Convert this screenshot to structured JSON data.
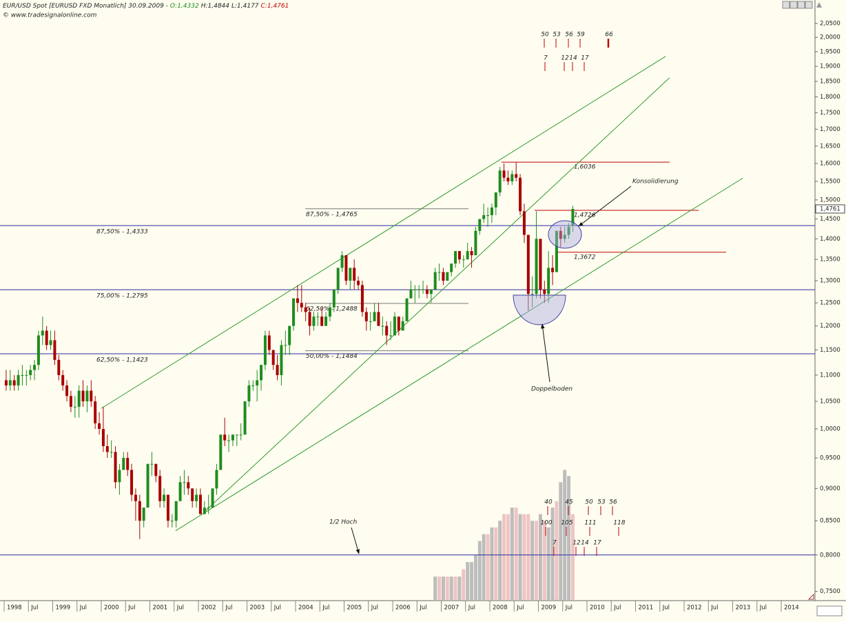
{
  "chart_data": {
    "type": "candlestick",
    "header": {
      "title": "EUR/USD Spot [EURUSD FXD  Monatlich] 30.09.2009 -",
      "open": "O:1,4332",
      "high": "H:1,4844",
      "low": "L:1,4177",
      "close": "C:1,4761"
    },
    "source": "© www.tradesignalonline.com",
    "x": [
      "1998-01",
      "1998-02",
      "1998-03",
      "1998-04",
      "1998-05",
      "1998-06",
      "1998-07",
      "1998-08",
      "1998-09",
      "1998-10",
      "1998-11",
      "1998-12",
      "1999-01",
      "1999-02",
      "1999-03",
      "1999-04",
      "1999-05",
      "1999-06",
      "1999-07",
      "1999-08",
      "1999-09",
      "1999-10",
      "1999-11",
      "1999-12",
      "2000-01",
      "2000-02",
      "2000-03",
      "2000-04",
      "2000-05",
      "2000-06",
      "2000-07",
      "2000-08",
      "2000-09",
      "2000-10",
      "2000-11",
      "2000-12",
      "2001-01",
      "2001-02",
      "2001-03",
      "2001-04",
      "2001-05",
      "2001-06",
      "2001-07",
      "2001-08",
      "2001-09",
      "2001-10",
      "2001-11",
      "2001-12",
      "2002-01",
      "2002-02",
      "2002-03",
      "2002-04",
      "2002-05",
      "2002-06",
      "2002-07",
      "2002-08",
      "2002-09",
      "2002-10",
      "2002-11",
      "2002-12",
      "2003-01",
      "2003-02",
      "2003-03",
      "2003-04",
      "2003-05",
      "2003-06",
      "2003-07",
      "2003-08",
      "2003-09",
      "2003-10",
      "2003-11",
      "2003-12",
      "2004-01",
      "2004-02",
      "2004-03",
      "2004-04",
      "2004-05",
      "2004-06",
      "2004-07",
      "2004-08",
      "2004-09",
      "2004-10",
      "2004-11",
      "2004-12",
      "2005-01",
      "2005-02",
      "2005-03",
      "2005-04",
      "2005-05",
      "2005-06",
      "2005-07",
      "2005-08",
      "2005-09",
      "2005-10",
      "2005-11",
      "2005-12",
      "2006-01",
      "2006-02",
      "2006-03",
      "2006-04",
      "2006-05",
      "2006-06",
      "2006-07",
      "2006-08",
      "2006-09",
      "2006-10",
      "2006-11",
      "2006-12",
      "2007-01",
      "2007-02",
      "2007-03",
      "2007-04",
      "2007-05",
      "2007-06",
      "2007-07",
      "2007-08",
      "2007-09",
      "2007-10",
      "2007-11",
      "2007-12",
      "2008-01",
      "2008-02",
      "2008-03",
      "2008-04",
      "2008-05",
      "2008-06",
      "2008-07",
      "2008-08",
      "2008-09",
      "2008-10",
      "2008-11",
      "2008-12",
      "2009-01",
      "2009-02",
      "2009-03",
      "2009-04",
      "2009-05",
      "2009-06",
      "2009-07",
      "2009-08",
      "2009-09"
    ],
    "open": [
      1.09,
      1.08,
      1.09,
      1.08,
      1.1,
      1.1,
      1.1,
      1.11,
      1.12,
      1.18,
      1.19,
      1.16,
      1.17,
      1.13,
      1.1,
      1.08,
      1.06,
      1.04,
      1.04,
      1.07,
      1.05,
      1.07,
      1.05,
      1.01,
      1.0,
      0.97,
      0.96,
      0.96,
      0.91,
      0.93,
      0.95,
      0.93,
      0.89,
      0.88,
      0.85,
      0.87,
      0.94,
      0.94,
      0.92,
      0.88,
      0.89,
      0.85,
      0.85,
      0.88,
      0.91,
      0.91,
      0.9,
      0.88,
      0.89,
      0.86,
      0.87,
      0.87,
      0.9,
      0.93,
      0.99,
      0.98,
      0.98,
      0.99,
      0.99,
      0.99,
      1.05,
      1.08,
      1.08,
      1.09,
      1.12,
      1.18,
      1.15,
      1.12,
      1.1,
      1.16,
      1.16,
      1.2,
      1.26,
      1.25,
      1.24,
      1.23,
      1.2,
      1.22,
      1.22,
      1.2,
      1.22,
      1.24,
      1.28,
      1.33,
      1.36,
      1.3,
      1.33,
      1.3,
      1.29,
      1.23,
      1.21,
      1.21,
      1.23,
      1.2,
      1.2,
      1.18,
      1.18,
      1.22,
      1.19,
      1.21,
      1.26,
      1.28,
      1.28,
      1.28,
      1.28,
      1.27,
      1.28,
      1.32,
      1.32,
      1.3,
      1.32,
      1.34,
      1.37,
      1.35,
      1.35,
      1.37,
      1.36,
      1.42,
      1.45,
      1.46,
      1.46,
      1.48,
      1.52,
      1.58,
      1.56,
      1.55,
      1.57,
      1.56,
      1.47,
      1.41,
      1.27,
      1.27,
      1.4,
      1.28,
      1.27,
      1.33,
      1.32,
      1.42,
      1.4,
      1.41,
      1.4332
    ],
    "high": [
      1.11,
      1.11,
      1.1,
      1.11,
      1.12,
      1.11,
      1.12,
      1.13,
      1.19,
      1.22,
      1.2,
      1.19,
      1.19,
      1.14,
      1.11,
      1.09,
      1.07,
      1.06,
      1.08,
      1.09,
      1.08,
      1.09,
      1.06,
      1.03,
      1.04,
      0.99,
      0.98,
      0.97,
      0.94,
      0.96,
      0.96,
      0.94,
      0.9,
      0.89,
      0.87,
      0.94,
      0.96,
      0.94,
      0.93,
      0.9,
      0.89,
      0.86,
      0.88,
      0.92,
      0.93,
      0.92,
      0.9,
      0.9,
      0.9,
      0.88,
      0.89,
      0.9,
      0.94,
      0.99,
      1.02,
      0.99,
      0.99,
      0.99,
      1.01,
      1.05,
      1.09,
      1.09,
      1.11,
      1.12,
      1.19,
      1.19,
      1.15,
      1.14,
      1.17,
      1.19,
      1.2,
      1.26,
      1.29,
      1.29,
      1.25,
      1.24,
      1.23,
      1.23,
      1.24,
      1.23,
      1.25,
      1.28,
      1.33,
      1.37,
      1.36,
      1.33,
      1.35,
      1.31,
      1.3,
      1.24,
      1.23,
      1.25,
      1.25,
      1.22,
      1.21,
      1.21,
      1.23,
      1.22,
      1.22,
      1.26,
      1.3,
      1.29,
      1.29,
      1.3,
      1.29,
      1.28,
      1.33,
      1.34,
      1.33,
      1.32,
      1.34,
      1.37,
      1.37,
      1.36,
      1.39,
      1.38,
      1.43,
      1.45,
      1.49,
      1.48,
      1.49,
      1.52,
      1.59,
      1.6,
      1.58,
      1.58,
      1.6036,
      1.57,
      1.49,
      1.41,
      1.31,
      1.47,
      1.4,
      1.3,
      1.37,
      1.36,
      1.42,
      1.43,
      1.43,
      1.44,
      1.4844
    ],
    "low": [
      1.07,
      1.07,
      1.07,
      1.07,
      1.08,
      1.08,
      1.09,
      1.09,
      1.11,
      1.16,
      1.15,
      1.15,
      1.12,
      1.09,
      1.07,
      1.05,
      1.03,
      1.02,
      1.02,
      1.04,
      1.03,
      1.04,
      1.0,
      0.99,
      0.96,
      0.95,
      0.95,
      0.9,
      0.89,
      0.93,
      0.92,
      0.88,
      0.85,
      0.8228,
      0.84,
      0.87,
      0.92,
      0.91,
      0.87,
      0.87,
      0.84,
      0.84,
      0.84,
      0.88,
      0.89,
      0.89,
      0.87,
      0.87,
      0.86,
      0.86,
      0.86,
      0.87,
      0.89,
      0.93,
      0.97,
      0.96,
      0.97,
      0.97,
      0.98,
      0.99,
      1.04,
      1.07,
      1.05,
      1.07,
      1.11,
      1.14,
      1.11,
      1.09,
      1.08,
      1.14,
      1.14,
      1.19,
      1.23,
      1.23,
      1.21,
      1.18,
      1.19,
      1.2,
      1.2,
      1.2,
      1.21,
      1.23,
      1.27,
      1.32,
      1.29,
      1.28,
      1.28,
      1.28,
      1.22,
      1.19,
      1.19,
      1.21,
      1.2,
      1.18,
      1.16,
      1.17,
      1.18,
      1.18,
      1.19,
      1.21,
      1.26,
      1.25,
      1.26,
      1.27,
      1.26,
      1.25,
      1.28,
      1.3,
      1.29,
      1.3,
      1.31,
      1.33,
      1.34,
      1.33,
      1.35,
      1.33,
      1.36,
      1.41,
      1.44,
      1.43,
      1.44,
      1.46,
      1.51,
      1.55,
      1.54,
      1.54,
      1.55,
      1.46,
      1.39,
      1.233,
      1.24,
      1.26,
      1.26,
      1.25,
      1.25,
      1.29,
      1.32,
      1.38,
      1.39,
      1.4,
      1.4177
    ],
    "close": [
      1.08,
      1.09,
      1.08,
      1.1,
      1.1,
      1.1,
      1.11,
      1.12,
      1.18,
      1.19,
      1.16,
      1.17,
      1.13,
      1.1,
      1.08,
      1.06,
      1.04,
      1.04,
      1.07,
      1.05,
      1.07,
      1.05,
      1.01,
      1.0,
      0.97,
      0.96,
      0.96,
      0.91,
      0.93,
      0.95,
      0.93,
      0.89,
      0.88,
      0.85,
      0.87,
      0.94,
      0.94,
      0.92,
      0.88,
      0.89,
      0.85,
      0.85,
      0.88,
      0.91,
      0.91,
      0.9,
      0.88,
      0.89,
      0.86,
      0.87,
      0.87,
      0.9,
      0.93,
      0.99,
      0.98,
      0.98,
      0.99,
      0.99,
      0.99,
      1.05,
      1.08,
      1.08,
      1.09,
      1.12,
      1.18,
      1.15,
      1.12,
      1.1,
      1.16,
      1.16,
      1.2,
      1.26,
      1.25,
      1.24,
      1.23,
      1.2,
      1.22,
      1.22,
      1.2,
      1.22,
      1.24,
      1.28,
      1.33,
      1.36,
      1.3,
      1.33,
      1.3,
      1.29,
      1.23,
      1.21,
      1.21,
      1.23,
      1.2,
      1.2,
      1.18,
      1.18,
      1.22,
      1.19,
      1.21,
      1.26,
      1.28,
      1.28,
      1.28,
      1.28,
      1.27,
      1.28,
      1.32,
      1.32,
      1.3,
      1.32,
      1.34,
      1.37,
      1.35,
      1.35,
      1.37,
      1.36,
      1.42,
      1.45,
      1.46,
      1.46,
      1.48,
      1.52,
      1.58,
      1.56,
      1.55,
      1.57,
      1.56,
      1.47,
      1.41,
      1.27,
      1.27,
      1.4,
      1.28,
      1.27,
      1.33,
      1.32,
      1.42,
      1.4,
      1.41,
      1.43,
      1.4761
    ],
    "color_up": "#1e8c1e",
    "color_down": "#a80000",
    "last_label": "1,4761",
    "log": true,
    "ylim": [
      0.7388,
      2.098
    ],
    "yticks": [
      {
        "value": 0.75,
        "label": "0,7500"
      },
      {
        "value": 0.8,
        "label": "0,8000"
      },
      {
        "value": 0.85,
        "label": "0,8500"
      },
      {
        "value": 0.9,
        "label": "0,9000"
      },
      {
        "value": 0.95,
        "label": "0,9500"
      },
      {
        "value": 1.0,
        "label": "1,0000"
      },
      {
        "value": 1.05,
        "label": "1,0500"
      },
      {
        "value": 1.1,
        "label": "1,1000"
      },
      {
        "value": 1.15,
        "label": "1,1500"
      },
      {
        "value": 1.2,
        "label": "1,2000"
      },
      {
        "value": 1.25,
        "label": "1,2500"
      },
      {
        "value": 1.3,
        "label": "1,3000"
      },
      {
        "value": 1.35,
        "label": "1,3500"
      },
      {
        "value": 1.4,
        "label": "1,4000"
      },
      {
        "value": 1.45,
        "label": "1,4500"
      },
      {
        "value": 1.5,
        "label": "1,5000"
      },
      {
        "value": 1.55,
        "label": "1,5500"
      },
      {
        "value": 1.6,
        "label": "1,6000"
      },
      {
        "value": 1.65,
        "label": "1,6500"
      },
      {
        "value": 1.7,
        "label": "1,7000"
      },
      {
        "value": 1.75,
        "label": "1,7500"
      },
      {
        "value": 1.8,
        "label": "1,8000"
      },
      {
        "value": 1.85,
        "label": "1,8500"
      },
      {
        "value": 1.9,
        "label": "1,9000"
      },
      {
        "value": 1.95,
        "label": "1,9500"
      },
      {
        "value": 2.0,
        "label": "2,0000"
      },
      {
        "value": 2.05,
        "label": "2,0500"
      }
    ],
    "xlim": [
      1997.915,
      2014.695
    ],
    "xticks": [
      1998,
      {
        "value": 1998.5,
        "label": "Jul"
      },
      1999,
      {
        "value": 1999.5,
        "label": "Jul"
      },
      2000,
      {
        "value": 2000.5,
        "label": "Jul"
      },
      2001,
      {
        "value": 2001.5,
        "label": "Jul"
      },
      2002,
      {
        "value": 2002.5,
        "label": "Jul"
      },
      2003,
      {
        "value": 2003.5,
        "label": "Jul"
      },
      2004,
      {
        "value": 2004.5,
        "label": "Jul"
      },
      2005,
      {
        "value": 2005.5,
        "label": "Jul"
      },
      2006,
      {
        "value": 2006.5,
        "label": "Jul"
      },
      2007,
      {
        "value": 2007.5,
        "label": "Jul"
      },
      2008,
      {
        "value": 2008.5,
        "label": "Jul"
      },
      2009,
      {
        "value": 2009.5,
        "label": "Jul"
      },
      2010,
      {
        "value": 2010.5,
        "label": "Jul"
      },
      2011,
      {
        "value": 2011.5,
        "label": "Jul"
      },
      2012,
      {
        "value": 2012.5,
        "label": "Jul"
      },
      2013,
      {
        "value": 2013.5,
        "label": "Jul"
      },
      2014
    ],
    "bars": {
      "x": [
        "2006-11",
        "2006-12",
        "2007-01",
        "2007-02",
        "2007-03",
        "2007-04",
        "2007-05",
        "2007-06",
        "2007-07",
        "2007-08",
        "2007-09",
        "2007-10",
        "2007-11",
        "2007-12",
        "2008-01",
        "2008-02",
        "2008-03",
        "2008-04",
        "2008-05",
        "2008-06",
        "2008-07",
        "2008-08",
        "2008-09",
        "2008-10",
        "2008-11",
        "2008-12",
        "2009-01",
        "2009-02",
        "2009-03",
        "2009-04",
        "2009-05",
        "2009-06",
        "2009-07",
        "2009-08",
        "2009-09"
      ],
      "values": [
        0.77,
        0.77,
        0.77,
        0.77,
        0.77,
        0.77,
        0.77,
        0.78,
        0.79,
        0.79,
        0.8,
        0.82,
        0.83,
        0.83,
        0.84,
        0.84,
        0.85,
        0.86,
        0.86,
        0.87,
        0.87,
        0.86,
        0.86,
        0.86,
        0.85,
        0.85,
        0.86,
        0.85,
        0.84,
        0.87,
        0.88,
        0.91,
        0.93,
        0.92,
        0.86
      ],
      "colors": [
        "#bdbdbd",
        "#f0c4c4",
        "#bdbdbd",
        "#f0c4c4",
        "#bdbdbd",
        "#f0c4c4",
        "#bdbdbd",
        "#f0c4c4",
        "#bdbdbd",
        "#bdbdbd",
        "#bdbdbd",
        "#bdbdbd",
        "#bdbdbd",
        "#f0c4c4",
        "#bdbdbd",
        "#f0c4c4",
        "#bdbdbd",
        "#f0c4c4",
        "#f0c4c4",
        "#bdbdbd",
        "#f0c4c4",
        "#bdbdbd",
        "#f0c4c4",
        "#f0c4c4",
        "#bdbdbd",
        "#f0c4c4",
        "#bdbdbd",
        "#f0c4c4",
        "#bdbdbd",
        "#bdbdbd",
        "#f0c4c4",
        "#bdbdbd",
        "#bdbdbd",
        "#bdbdbd",
        "#f0c4c4"
      ]
    },
    "blue_levels": [
      {
        "value": 1.4333,
        "label": "87,50% - 1,4333"
      },
      {
        "value": 1.2795,
        "label": "75,00% - 1,2795"
      },
      {
        "value": 1.1423,
        "label": "62,50% - 1,1423"
      },
      {
        "value": 0.8
      }
    ],
    "grey_levels": [
      {
        "value": 1.4765,
        "label": "87,50% - 1,4765"
      },
      {
        "value": 1.2488,
        "label": "62,50% - 1,2488"
      },
      {
        "value": 1.1484,
        "label": "50,00% - 1,1484"
      }
    ],
    "red_levels": [
      {
        "value": 1.6036,
        "label": "1,6036"
      },
      {
        "value": 1.4726,
        "label": "1,4726"
      },
      {
        "value": 1.3672,
        "label": "1,3672"
      }
    ],
    "trendlines": [
      {
        "from": [
          2000.0,
          1.037
        ],
        "to": [
          2011.62,
          1.934
        ]
      },
      {
        "from": [
          2002.13,
          0.864
        ],
        "to": [
          2011.7,
          1.862
        ]
      },
      {
        "from": [
          2001.53,
          0.835
        ],
        "to": [
          2013.21,
          1.559
        ]
      }
    ],
    "trend_color": "#2e9a2e",
    "annotations": {
      "konsolidierung": "Konsolidierung",
      "doppelboden": "Doppelboden",
      "half_high": "1/2 Hoch"
    },
    "cycles": [
      [
        50,
        53,
        56,
        59,
        66
      ],
      [
        7,
        12,
        14,
        17
      ],
      [
        40,
        45,
        50,
        53,
        56
      ],
      [
        100,
        105,
        111,
        118
      ],
      [
        7,
        12,
        14,
        17
      ]
    ]
  }
}
